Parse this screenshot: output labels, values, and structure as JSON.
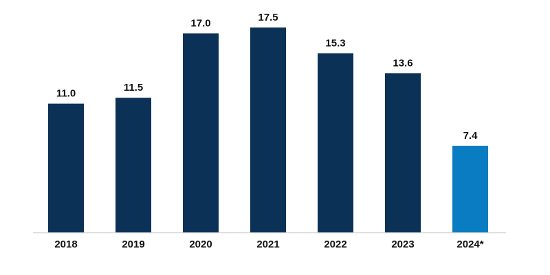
{
  "chart_data": {
    "type": "bar",
    "categories": [
      "2018",
      "2019",
      "2020",
      "2021",
      "2022",
      "2023",
      "2024*"
    ],
    "values": [
      11.0,
      11.5,
      17.0,
      17.5,
      15.3,
      13.6,
      7.4
    ],
    "value_labels": [
      "11.0",
      "11.5",
      "17.0",
      "17.5",
      "15.3",
      "13.6",
      "7.4"
    ],
    "colors": [
      "#0b3157",
      "#0b3157",
      "#0b3157",
      "#0b3157",
      "#0b3157",
      "#0b3157",
      "#0a7cc1"
    ]
  }
}
